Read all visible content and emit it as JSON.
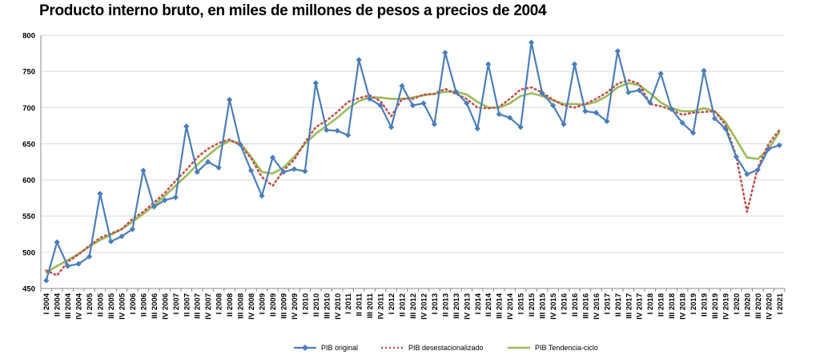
{
  "chart_data": {
    "type": "line",
    "title": "Producto interno bruto, en miles de millones de pesos a precios de 2004",
    "xlabel": "",
    "ylabel": "",
    "ylim": [
      450,
      800
    ],
    "yticks": [
      450,
      500,
      550,
      600,
      650,
      700,
      750,
      800
    ],
    "grid": "horizontal",
    "legend_placement": "bottom",
    "categories": [
      "I 2004",
      "II 2004",
      "III 2004",
      "IV 2004",
      "I 2005",
      "II 2005",
      "III 2005",
      "IV 2005",
      "I 2006",
      "II 2006",
      "III 2006",
      "IV 2006",
      "I 2007",
      "II 2007",
      "III 2007",
      "IV 2007",
      "I 2008",
      "II 2008",
      "III 2008",
      "IV 2008",
      "I 2009",
      "II 2009",
      "III 2009",
      "IV 2009",
      "I 2010",
      "II 2010",
      "III 2010",
      "IV 2010",
      "I 2011",
      "II 2011",
      "III 2011",
      "IV 2011",
      "I 2012",
      "II 2012",
      "III 2012",
      "IV 2012",
      "I 2013",
      "II 2013",
      "III 2013",
      "IV 2013",
      "I 2014",
      "II 2014",
      "III 2014",
      "IV 2014",
      "I 2015",
      "II 2015",
      "III 2015",
      "IV 2015",
      "I 2016",
      "II 2016",
      "III 2016",
      "IV 2016",
      "I 2017",
      "II 2017",
      "III 2017",
      "IV 2017",
      "I 2018",
      "II 2018",
      "III 2018",
      "IV 2018",
      "I 2019",
      "II 2019",
      "III 2019",
      "IV 2019",
      "I 2020",
      "II 2020",
      "III 2020",
      "IV 2020",
      "I 2021"
    ],
    "series": [
      {
        "name": "PIB original",
        "color": "#4a7ebb",
        "style": "line-diamond",
        "values": [
          461,
          514,
          481,
          484,
          494,
          581,
          515,
          522,
          532,
          613,
          563,
          572,
          576,
          674,
          611,
          625,
          617,
          711,
          649,
          613,
          578,
          631,
          611,
          615,
          612,
          734,
          669,
          668,
          662,
          766,
          712,
          703,
          673,
          730,
          703,
          706,
          677,
          776,
          722,
          706,
          671,
          760,
          691,
          686,
          673,
          790,
          720,
          703,
          677,
          760,
          695,
          693,
          681,
          778,
          721,
          724,
          707,
          747,
          698,
          679,
          665,
          751,
          685,
          671,
          632,
          608,
          614,
          643,
          648
        ]
      },
      {
        "name": "PIB desestacionalizado",
        "color": "#c0504d",
        "style": "dotted",
        "values": [
          475,
          468,
          487,
          497,
          509,
          520,
          526,
          532,
          546,
          556,
          569,
          582,
          599,
          614,
          631,
          643,
          651,
          656,
          648,
          630,
          604,
          592,
          613,
          628,
          652,
          673,
          682,
          694,
          708,
          713,
          717,
          709,
          688,
          712,
          712,
          718,
          719,
          726,
          719,
          712,
          700,
          699,
          701,
          712,
          725,
          728,
          721,
          711,
          703,
          700,
          705,
          712,
          721,
          733,
          738,
          733,
          705,
          702,
          697,
          690,
          693,
          694,
          695,
          676,
          633,
          556,
          617,
          650,
          669
        ]
      },
      {
        "name": "PIB Tendencia-ciclo",
        "color": "#9bbb59",
        "style": "solid",
        "values": [
          472,
          481,
          489,
          498,
          508,
          517,
          524,
          532,
          542,
          553,
          565,
          578,
          592,
          606,
          621,
          634,
          646,
          654,
          651,
          632,
          611,
          609,
          617,
          632,
          650,
          664,
          675,
          686,
          699,
          709,
          714,
          714,
          712,
          712,
          714,
          717,
          719,
          722,
          722,
          718,
          708,
          700,
          700,
          706,
          716,
          720,
          716,
          710,
          705,
          705,
          704,
          708,
          716,
          728,
          734,
          731,
          720,
          707,
          699,
          695,
          695,
          699,
          695,
          680,
          656,
          631,
          629,
          643,
          666
        ]
      }
    ]
  }
}
